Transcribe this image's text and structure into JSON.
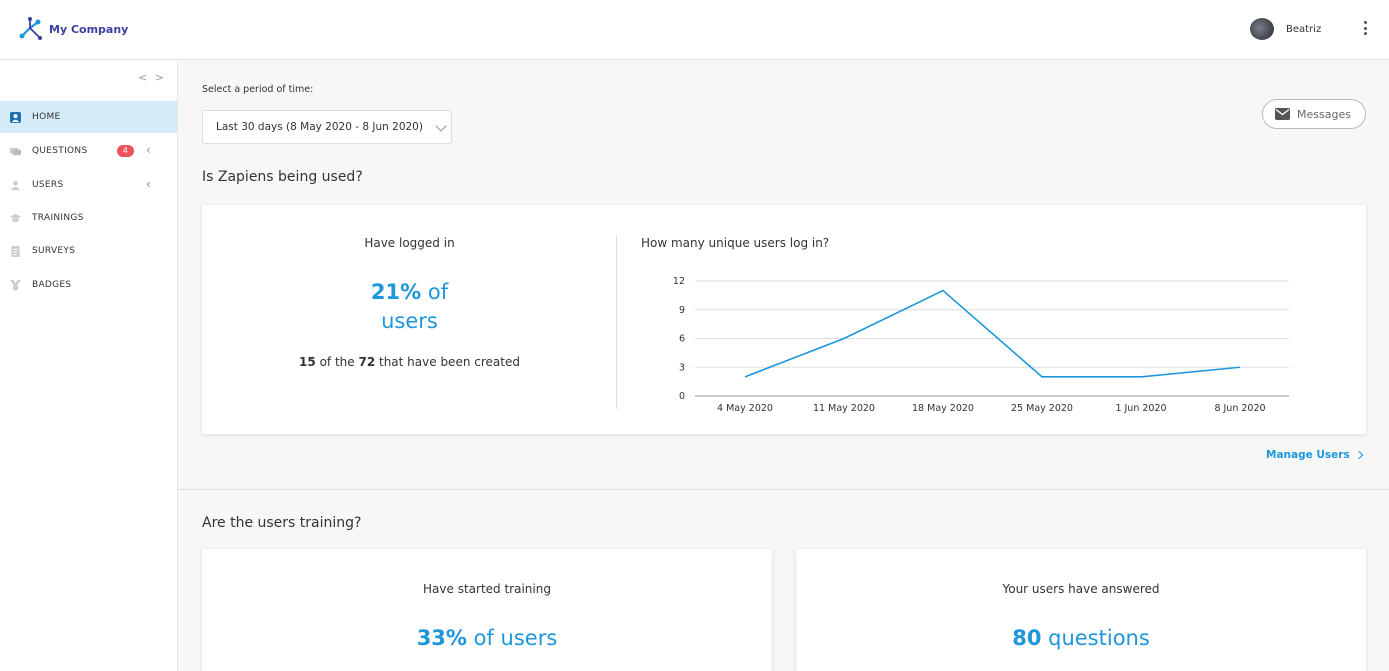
{
  "header": {
    "company": "My Company",
    "user_name": "Beatriz"
  },
  "sidebar": {
    "collapse_label": "< >",
    "items": [
      {
        "label": "HOME",
        "icon": "home-user-icon",
        "active": true
      },
      {
        "label": "QUESTIONS",
        "icon": "chat-icon",
        "badge": "4",
        "expandable": true
      },
      {
        "label": "USERS",
        "icon": "user-icon",
        "expandable": true
      },
      {
        "label": "TRAININGS",
        "icon": "graduation-cap-icon"
      },
      {
        "label": "SURVEYS",
        "icon": "survey-icon"
      },
      {
        "label": "BADGES",
        "icon": "badge-icon"
      }
    ]
  },
  "filter": {
    "label": "Select a period of time:",
    "selected": "Last 30 days (8 May 2020 - 8 Jun 2020)"
  },
  "messages_button": "Messages",
  "section1": {
    "title": "Is Zapiens being used?",
    "logged_title": "Have logged in",
    "logged_percent": "21%",
    "logged_of": "of",
    "logged_users": "users",
    "count": "15",
    "of_the": "of the",
    "total": "72",
    "created_text": "that have been created",
    "chart_title": "How many unique users log in?"
  },
  "chart_data": {
    "type": "line",
    "title": "How many unique users log in?",
    "x": [
      "4 May 2020",
      "11 May 2020",
      "18 May 2020",
      "25 May 2020",
      "1 Jun 2020",
      "8 Jun 2020"
    ],
    "y_ticks": [
      "0",
      "3",
      "6",
      "9",
      "12"
    ],
    "ylim": [
      0,
      12
    ],
    "series": [
      {
        "values": [
          2,
          6,
          11,
          2,
          2,
          3
        ],
        "color": "#1e96dc"
      }
    ],
    "grid": true
  },
  "manage_users": "Manage Users",
  "section2": {
    "title": "Are the users training?",
    "training_title": "Have started training",
    "training_percent": "33%",
    "training_suffix": "of users",
    "answered_title": "Your users have answered",
    "answered_count": "80",
    "answered_suffix": "questions"
  },
  "colors": {
    "accent": "#1e96dc",
    "badge": "#f0515a",
    "active_nav": "#d7ecfb"
  }
}
